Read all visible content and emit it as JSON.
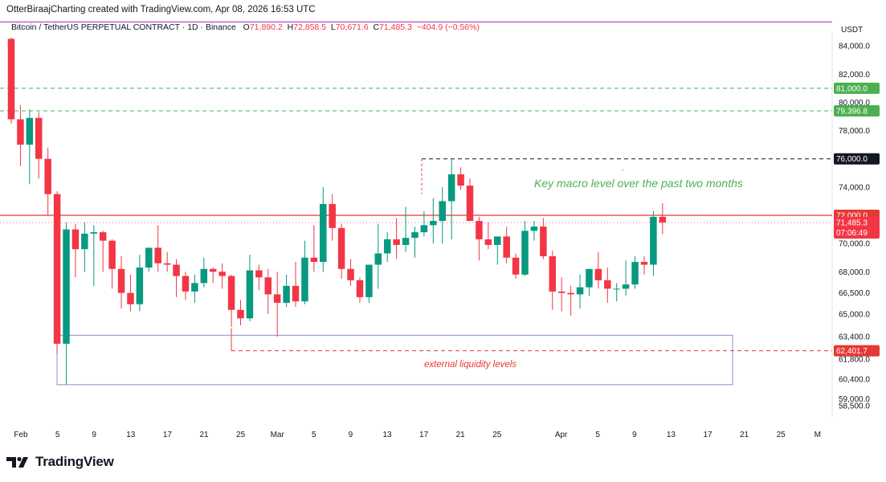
{
  "header": {
    "credit": "OtterBiraajCharting created with TradingView.com, Apr 08, 2026 16:53 UTC"
  },
  "symbol": {
    "name": "Bitcoin / TetherUS PERPETUAL CONTRACT · 1D · Binance",
    "o_label": "O",
    "o_value": "71,890.2",
    "h_label": "H",
    "h_value": "72,858.5",
    "l_label": "L",
    "l_value": "70,671.6",
    "c_label": "C",
    "c_value": "71,485.3",
    "change": "−404.9 (−0.56%)"
  },
  "footer": {
    "brand": "TradingView"
  },
  "colors": {
    "up": "#089981",
    "down": "#f23645",
    "green_level": "#4caf50",
    "red_level": "#e53935",
    "box": "#8c8cc8",
    "top_line": "#9c27b0",
    "axis_text": "#131722"
  },
  "chart_data": {
    "type": "candlestick",
    "currency": "USDT",
    "ylim": [
      58000,
      86000
    ],
    "y_ticks": [
      "84,000.0",
      "82,000.0",
      "80,000.0",
      "78,000.0",
      "74,000.0",
      "70,000.0",
      "68,000.0",
      "66,500.0",
      "65,000.0",
      "63,400.0",
      "61,800.0",
      "60,400.0",
      "59,000.0",
      "58,500.0"
    ],
    "x_ticks": [
      "Feb",
      "5",
      "9",
      "13",
      "17",
      "21",
      "25",
      "Mar",
      "5",
      "9",
      "13",
      "17",
      "21",
      "25",
      "Apr",
      "5",
      "9",
      "13",
      "17",
      "21",
      "25",
      "M"
    ],
    "candles": [
      [
        84500,
        84600,
        78500,
        78800
      ],
      [
        78800,
        79800,
        75500,
        77000
      ],
      [
        77000,
        79500,
        74200,
        78900
      ],
      [
        78900,
        79300,
        74600,
        76000
      ],
      [
        76000,
        76800,
        72000,
        73500
      ],
      [
        73500,
        73700,
        62200,
        62900
      ],
      [
        62900,
        71500,
        60000,
        71000
      ],
      [
        71000,
        71400,
        67600,
        69600
      ],
      [
        69600,
        71500,
        68000,
        70700
      ],
      [
        70700,
        71300,
        67000,
        70800
      ],
      [
        70800,
        70900,
        68000,
        70200
      ],
      [
        70200,
        70300,
        66800,
        68200
      ],
      [
        68200,
        69100,
        65400,
        66500
      ],
      [
        66500,
        67800,
        65200,
        65700
      ],
      [
        65700,
        69200,
        65200,
        68300
      ],
      [
        68300,
        69600,
        68000,
        69700
      ],
      [
        69700,
        71300,
        68000,
        68600
      ],
      [
        68600,
        69400,
        68000,
        68500
      ],
      [
        68500,
        68900,
        66200,
        67700
      ],
      [
        67700,
        68000,
        66000,
        66600
      ],
      [
        66600,
        67800,
        65800,
        67200
      ],
      [
        67200,
        69000,
        66900,
        68200
      ],
      [
        68200,
        68300,
        67200,
        68000
      ],
      [
        68000,
        68600,
        66800,
        67700
      ],
      [
        67700,
        67800,
        64100,
        65300
      ],
      [
        65300,
        66000,
        64200,
        64700
      ],
      [
        64700,
        69200,
        64500,
        68100
      ],
      [
        68100,
        68500,
        66700,
        67600
      ],
      [
        67600,
        68200,
        65000,
        66400
      ],
      [
        66400,
        68000,
        63400,
        65800
      ],
      [
        65800,
        67800,
        65500,
        67000
      ],
      [
        67000,
        68700,
        65500,
        65900
      ],
      [
        65900,
        70200,
        65700,
        69000
      ],
      [
        69000,
        71300,
        68000,
        68700
      ],
      [
        68700,
        74000,
        68000,
        72800
      ],
      [
        72800,
        73500,
        70200,
        71100
      ],
      [
        71100,
        71400,
        67500,
        68200
      ],
      [
        68200,
        68900,
        67000,
        67400
      ],
      [
        67400,
        67600,
        65800,
        66200
      ],
      [
        66200,
        68300,
        65800,
        68500
      ],
      [
        68500,
        71400,
        66800,
        69300
      ],
      [
        69300,
        70800,
        68700,
        70300
      ],
      [
        70300,
        71800,
        68900,
        69900
      ],
      [
        69900,
        72600,
        69400,
        70400
      ],
      [
        70400,
        71200,
        69000,
        70800
      ],
      [
        70800,
        72300,
        70500,
        71300
      ],
      [
        71300,
        73200,
        70000,
        71600
      ],
      [
        71600,
        74000,
        70000,
        73000
      ],
      [
        73000,
        76000,
        70300,
        74900
      ],
      [
        74900,
        75400,
        73800,
        74100
      ],
      [
        74100,
        74600,
        71800,
        71600
      ],
      [
        71600,
        71900,
        68800,
        70300
      ],
      [
        70300,
        71500,
        69600,
        69900
      ],
      [
        69900,
        70400,
        68500,
        70500
      ],
      [
        70500,
        71200,
        68600,
        69000
      ],
      [
        69000,
        69300,
        67500,
        67800
      ],
      [
        67800,
        71600,
        67700,
        70900
      ],
      [
        70900,
        71600,
        70200,
        71200
      ],
      [
        71200,
        71800,
        68900,
        69100
      ],
      [
        69100,
        69500,
        65300,
        66600
      ],
      [
        66600,
        67600,
        65200,
        66500
      ],
      [
        66500,
        67000,
        64900,
        66400
      ],
      [
        66400,
        67800,
        65400,
        66900
      ],
      [
        66900,
        68100,
        66300,
        68200
      ],
      [
        68200,
        69400,
        66800,
        67400
      ],
      [
        67400,
        68300,
        65800,
        66800
      ],
      [
        66800,
        67200,
        65900,
        66800
      ],
      [
        66800,
        68800,
        66300,
        67100
      ],
      [
        67100,
        69100,
        66800,
        68700
      ],
      [
        68700,
        69100,
        67800,
        68500
      ],
      [
        68500,
        72300,
        67700,
        71890
      ],
      [
        71890,
        72858,
        70671,
        71485
      ]
    ],
    "lines": [
      {
        "name": "",
        "value": 85700,
        "style": "solid",
        "color": "#9c27b0"
      },
      {
        "name": "",
        "value": 81000,
        "style": "dashed",
        "color": "#4caf50",
        "label": "81,000.0"
      },
      {
        "name": "",
        "value": 79396.8,
        "style": "dashed",
        "color": "#4caf50",
        "label": "79,396.8"
      },
      {
        "name": "",
        "value": 76000,
        "style": "dashed",
        "color": "#131722",
        "label": "76,000.0"
      },
      {
        "name": "",
        "value": 72000,
        "style": "solid",
        "color": "#e53935",
        "label": "72,000.0"
      },
      {
        "name": "",
        "value": 62401.7,
        "style": "dashed",
        "color": "#e53935",
        "label": "62,401.7"
      }
    ],
    "current_price": {
      "label": "71,485.3",
      "countdown": "07:06:49"
    },
    "liquidity_box": {
      "from_price": 63500,
      "to_price": 60000
    },
    "annotations": {
      "macro": "Key macro level over the past two months",
      "liquidity": "external liquidity levels"
    }
  }
}
